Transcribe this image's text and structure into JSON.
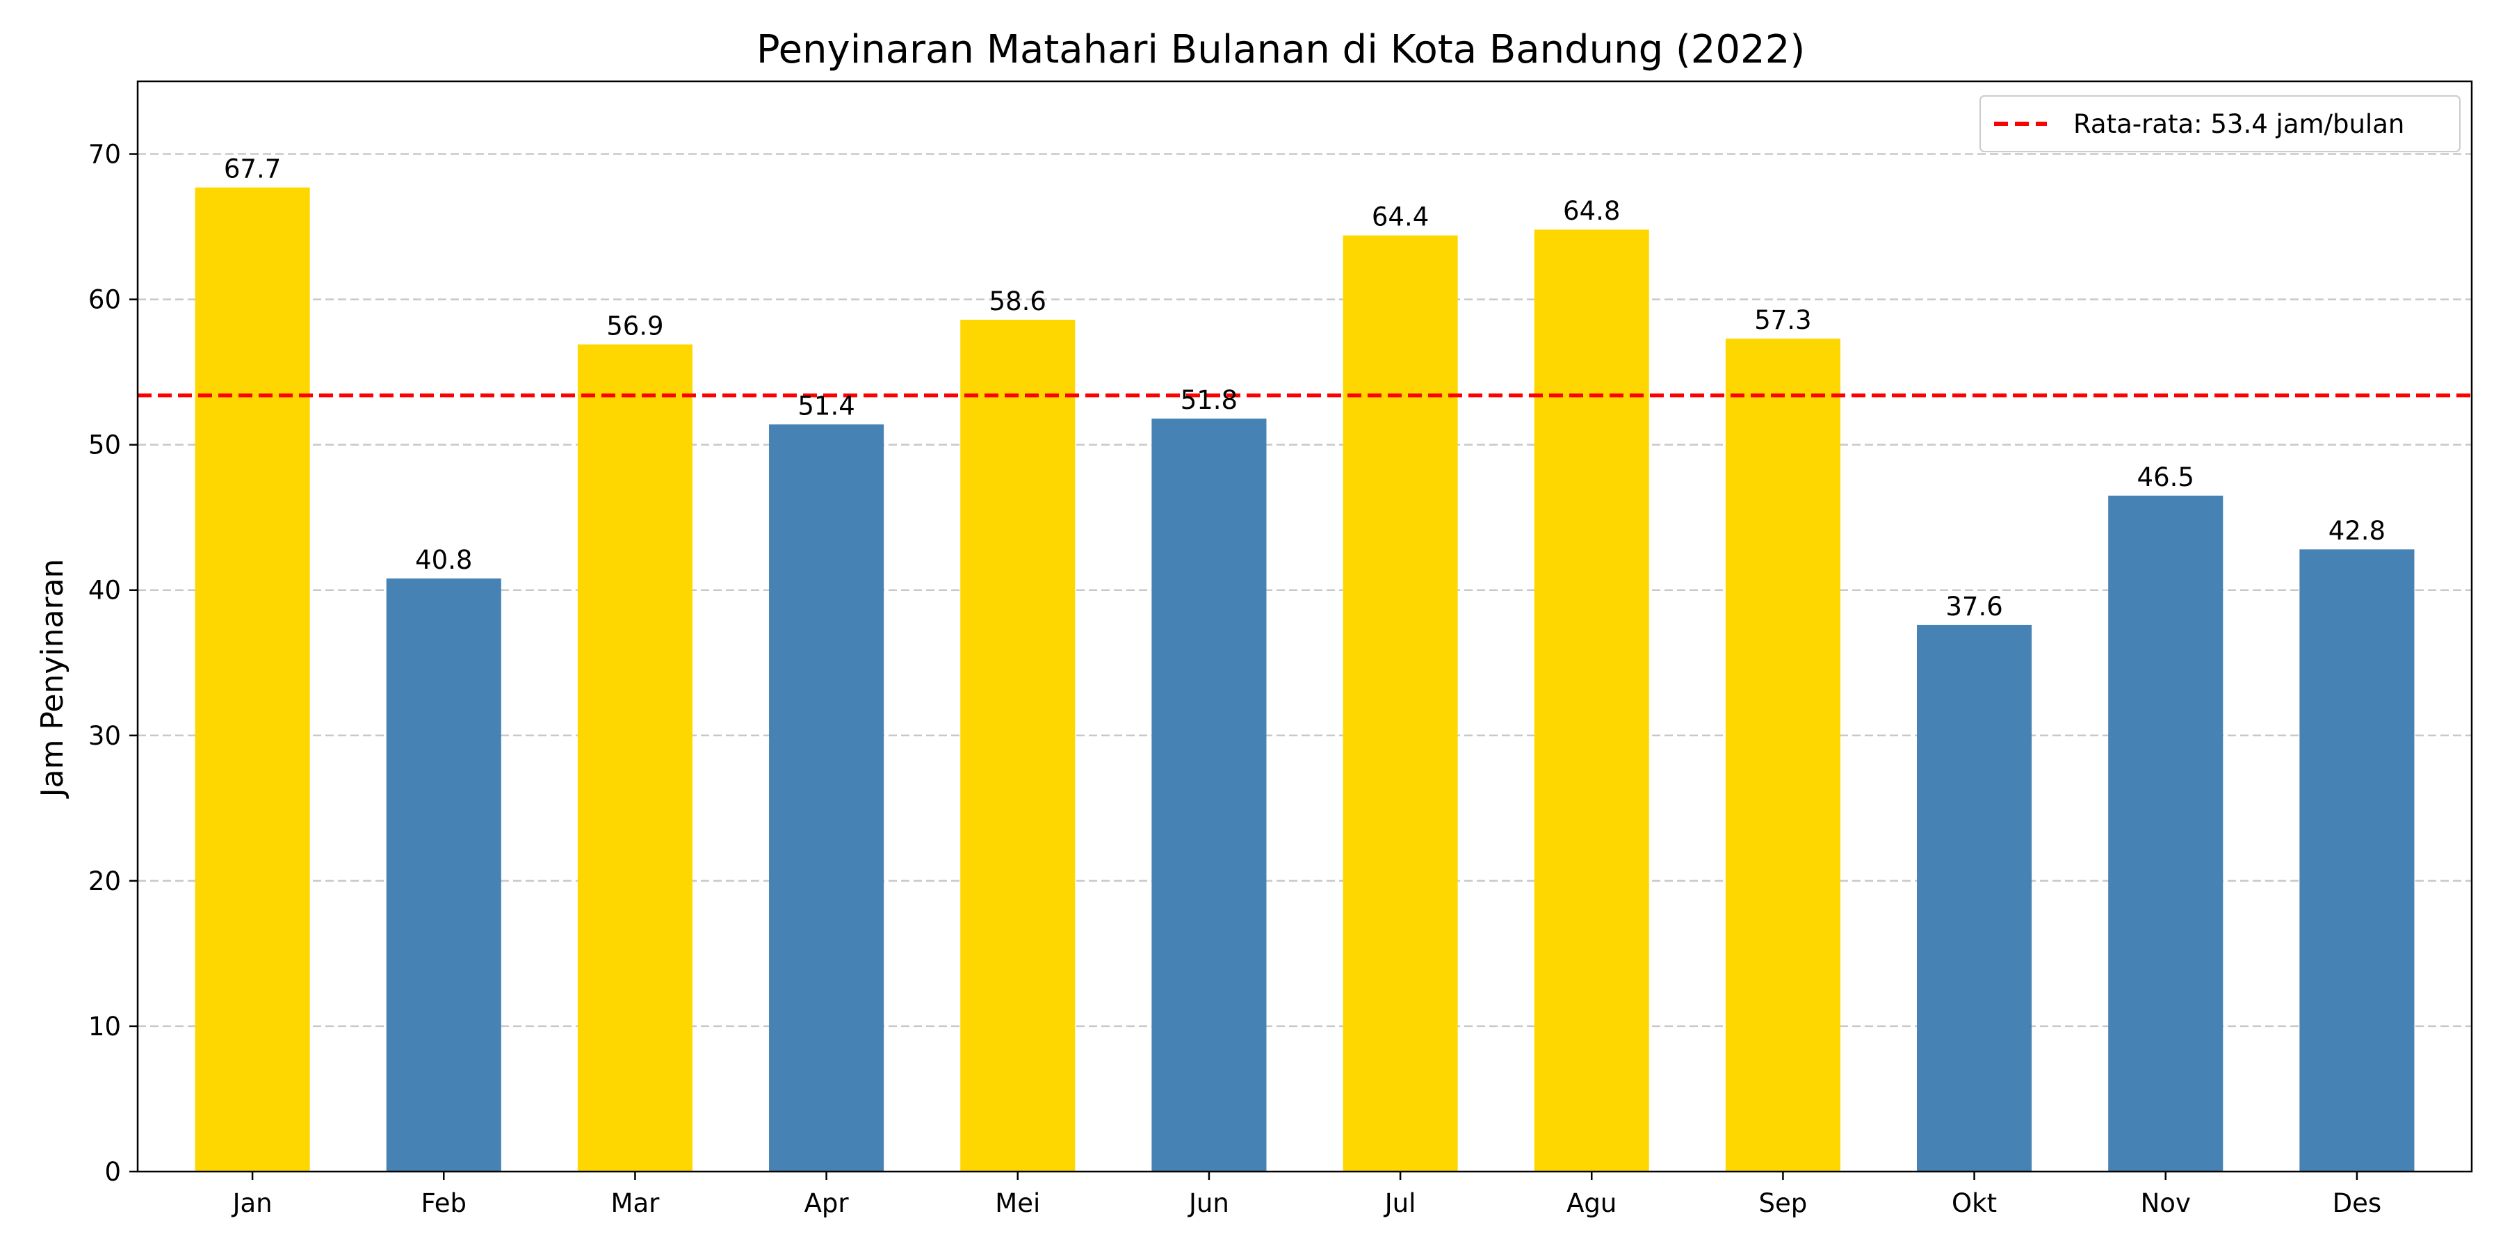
{
  "chart_data": {
    "type": "bar",
    "title": "Penyinaran Matahari Bulanan di Kota Bandung (2022)",
    "xlabel": "",
    "ylabel": "Jam Penyinaran",
    "categories": [
      "Jan",
      "Feb",
      "Mar",
      "Apr",
      "Mei",
      "Jun",
      "Jul",
      "Agu",
      "Sep",
      "Okt",
      "Nov",
      "Des"
    ],
    "values": [
      67.7,
      40.8,
      56.9,
      51.4,
      58.6,
      51.8,
      64.4,
      64.8,
      57.3,
      37.6,
      46.5,
      42.8
    ],
    "value_labels": [
      "67.7",
      "40.8",
      "56.9",
      "51.4",
      "58.6",
      "51.8",
      "64.4",
      "64.8",
      "57.3",
      "37.6",
      "46.5",
      "42.8"
    ],
    "ylim": [
      0,
      75
    ],
    "yticks": [
      0,
      10,
      20,
      30,
      40,
      50,
      60,
      70
    ],
    "ytick_labels": [
      "0",
      "10",
      "20",
      "30",
      "40",
      "50",
      "60",
      "70"
    ],
    "grid": "y-dashed",
    "average": {
      "value": 53.4,
      "label": "Rata-rata: 53.4 jam/bulan",
      "color": "#ff0000"
    },
    "colors": {
      "above_average": "#ffd700",
      "below_average": "#4682b4",
      "grid": "#c8c8c8",
      "axis": "#000000"
    },
    "legend": {
      "position": "top-right"
    }
  }
}
